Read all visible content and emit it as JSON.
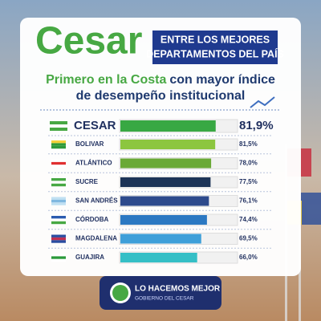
{
  "chart_data": {
    "type": "bar",
    "orientation": "horizontal",
    "title": "Cesar",
    "banner": [
      "ENTRE LOS MEJORES",
      "DEPARTAMENTOS DEL PAÍS"
    ],
    "subtitle": {
      "highlight": "Primero en la Costa",
      "line1": "con mayor índice",
      "line2": "de desempeño institucional"
    },
    "categories": [
      "CESAR",
      "BOLIVAR",
      "ATLÁNTICO",
      "SUCRE",
      "SAN ANDRÉS",
      "CÓRDOBA",
      "MAGDALENA",
      "GUAJIRA"
    ],
    "values": [
      81.9,
      81.5,
      78.0,
      77.5,
      76.1,
      74.4,
      69.5,
      66.0
    ],
    "value_labels": [
      "81,9%",
      "81,5%",
      "78,0%",
      "77,5%",
      "76,1%",
      "74,4%",
      "69,5%",
      "66,0%"
    ],
    "colors": [
      "#38a843",
      "#8cc63f",
      "#6aa936",
      "#1d3457",
      "#2d4a8c",
      "#2b78c2",
      "#3e9fd9",
      "#35bfc6"
    ],
    "xlim": [
      0,
      100
    ],
    "footer": {
      "title": "LO HACEMOS MEJOR",
      "subtitle": "GOBIERNO DEL CESAR"
    }
  }
}
